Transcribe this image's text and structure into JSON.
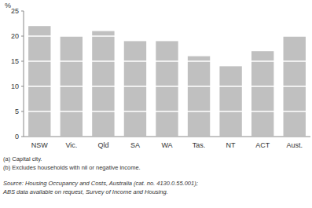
{
  "chart_data": {
    "type": "bar",
    "y_label": "%",
    "categories": [
      "NSW",
      "Vic.",
      "Qld",
      "SA",
      "WA",
      "Tas.",
      "NT",
      "ACT",
      "Aust."
    ],
    "values": [
      22,
      20,
      21,
      19,
      19,
      16,
      14,
      17,
      20
    ],
    "color": "#c0c0c0",
    "ylim": [
      0,
      25
    ],
    "yticks": [
      0,
      5,
      10,
      15,
      20,
      25
    ],
    "grid": true,
    "annotations": [
      "(a) Capital city.",
      "(b) Excludes households with nil or negative income."
    ],
    "source": [
      "Source: Housing Occupancy and Costs, Australia (cat. no. 4130.0.55.001);",
      "ABS data available on request, Survey of Income and Housing."
    ]
  }
}
